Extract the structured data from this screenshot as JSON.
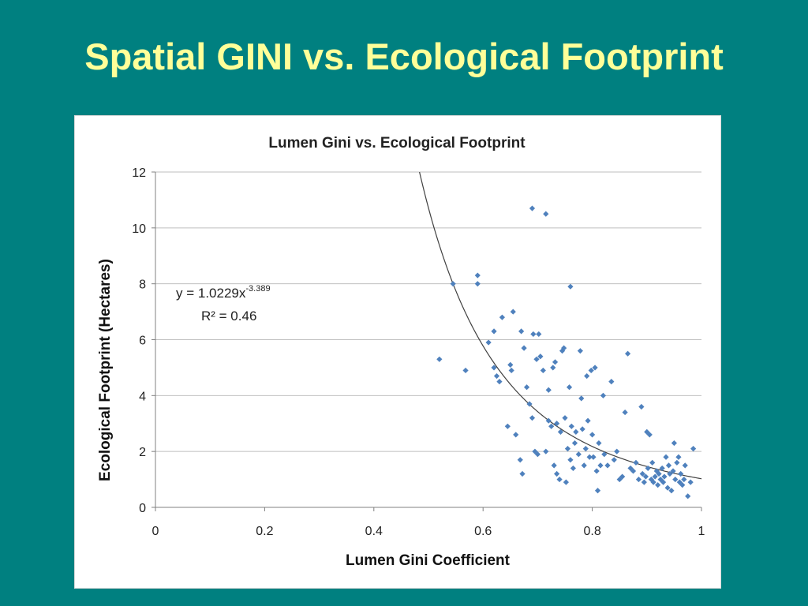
{
  "slide": {
    "title": "Spatial GINI vs. Ecological Footprint",
    "background_color": "#008080",
    "title_color": "#ffff99"
  },
  "chart_data": {
    "type": "scatter",
    "title": "Lumen Gini vs. Ecological Footprint",
    "xlabel": "Lumen Gini Coefficient",
    "ylabel": "Ecological Footprint (Hectares)",
    "xlim": [
      0,
      1
    ],
    "ylim": [
      0,
      12
    ],
    "x_ticks": [
      "0",
      "0.2",
      "0.4",
      "0.6",
      "0.8",
      "1"
    ],
    "y_ticks": [
      "0",
      "2",
      "4",
      "6",
      "8",
      "10",
      "12"
    ],
    "grid": "horizontal",
    "legend": "none",
    "point_color": "#4f81bd",
    "trendline": {
      "type": "power",
      "coefficient": 1.0229,
      "exponent": -3.389,
      "equation_base": "y = 1.0229x",
      "equation_exponent": "-3.389",
      "r_squared_label": "R² = 0.46",
      "color": "#404040"
    },
    "series": [
      {
        "marker": "diamond",
        "points": [
          [
            0.52,
            5.3
          ],
          [
            0.545,
            8.0
          ],
          [
            0.568,
            4.9
          ],
          [
            0.59,
            8.3
          ],
          [
            0.59,
            8.0
          ],
          [
            0.61,
            5.9
          ],
          [
            0.62,
            6.3
          ],
          [
            0.62,
            5.0
          ],
          [
            0.625,
            4.7
          ],
          [
            0.63,
            4.5
          ],
          [
            0.635,
            6.8
          ],
          [
            0.645,
            2.9
          ],
          [
            0.65,
            5.1
          ],
          [
            0.652,
            4.9
          ],
          [
            0.655,
            7.0
          ],
          [
            0.66,
            2.6
          ],
          [
            0.668,
            1.7
          ],
          [
            0.67,
            6.3
          ],
          [
            0.672,
            1.2
          ],
          [
            0.675,
            5.7
          ],
          [
            0.68,
            4.3
          ],
          [
            0.685,
            3.7
          ],
          [
            0.69,
            10.7
          ],
          [
            0.69,
            3.2
          ],
          [
            0.692,
            6.2
          ],
          [
            0.695,
            2.0
          ],
          [
            0.698,
            5.3
          ],
          [
            0.7,
            1.9
          ],
          [
            0.702,
            6.2
          ],
          [
            0.705,
            5.4
          ],
          [
            0.71,
            4.9
          ],
          [
            0.715,
            10.5
          ],
          [
            0.715,
            2.0
          ],
          [
            0.72,
            4.2
          ],
          [
            0.72,
            3.1
          ],
          [
            0.725,
            2.9
          ],
          [
            0.728,
            5.0
          ],
          [
            0.73,
            1.5
          ],
          [
            0.732,
            5.2
          ],
          [
            0.735,
            3.0
          ],
          [
            0.735,
            1.2
          ],
          [
            0.74,
            1.0
          ],
          [
            0.742,
            2.7
          ],
          [
            0.745,
            5.6
          ],
          [
            0.748,
            5.7
          ],
          [
            0.75,
            3.2
          ],
          [
            0.752,
            0.9
          ],
          [
            0.755,
            2.1
          ],
          [
            0.758,
            4.3
          ],
          [
            0.76,
            7.9
          ],
          [
            0.76,
            1.7
          ],
          [
            0.762,
            2.9
          ],
          [
            0.765,
            1.4
          ],
          [
            0.768,
            2.3
          ],
          [
            0.77,
            2.7
          ],
          [
            0.775,
            1.9
          ],
          [
            0.778,
            5.6
          ],
          [
            0.78,
            3.9
          ],
          [
            0.782,
            2.8
          ],
          [
            0.785,
            1.5
          ],
          [
            0.788,
            2.1
          ],
          [
            0.79,
            4.7
          ],
          [
            0.792,
            3.1
          ],
          [
            0.795,
            1.8
          ],
          [
            0.798,
            4.9
          ],
          [
            0.8,
            2.6
          ],
          [
            0.802,
            1.8
          ],
          [
            0.805,
            5.0
          ],
          [
            0.808,
            1.3
          ],
          [
            0.81,
            0.6
          ],
          [
            0.812,
            2.3
          ],
          [
            0.815,
            1.5
          ],
          [
            0.82,
            4.0
          ],
          [
            0.822,
            1.9
          ],
          [
            0.828,
            1.5
          ],
          [
            0.835,
            4.5
          ],
          [
            0.84,
            1.7
          ],
          [
            0.845,
            2.0
          ],
          [
            0.85,
            1.0
          ],
          [
            0.855,
            1.1
          ],
          [
            0.86,
            3.4
          ],
          [
            0.865,
            5.5
          ],
          [
            0.87,
            1.4
          ],
          [
            0.875,
            1.3
          ],
          [
            0.88,
            1.6
          ],
          [
            0.885,
            1.0
          ],
          [
            0.89,
            3.6
          ],
          [
            0.892,
            1.2
          ],
          [
            0.895,
            0.9
          ],
          [
            0.898,
            1.1
          ],
          [
            0.9,
            2.7
          ],
          [
            0.902,
            1.4
          ],
          [
            0.905,
            2.6
          ],
          [
            0.908,
            1.0
          ],
          [
            0.91,
            1.6
          ],
          [
            0.912,
            0.9
          ],
          [
            0.915,
            1.1
          ],
          [
            0.918,
            1.3
          ],
          [
            0.92,
            0.8
          ],
          [
            0.922,
            1.2
          ],
          [
            0.925,
            1.0
          ],
          [
            0.928,
            1.4
          ],
          [
            0.93,
            0.9
          ],
          [
            0.932,
            1.1
          ],
          [
            0.935,
            1.8
          ],
          [
            0.938,
            0.7
          ],
          [
            0.94,
            1.5
          ],
          [
            0.942,
            1.2
          ],
          [
            0.945,
            0.6
          ],
          [
            0.948,
            1.3
          ],
          [
            0.95,
            2.3
          ],
          [
            0.952,
            1.0
          ],
          [
            0.955,
            1.6
          ],
          [
            0.958,
            1.8
          ],
          [
            0.96,
            0.9
          ],
          [
            0.962,
            1.2
          ],
          [
            0.965,
            0.8
          ],
          [
            0.968,
            1.0
          ],
          [
            0.97,
            1.5
          ],
          [
            0.975,
            0.4
          ],
          [
            0.98,
            0.9
          ],
          [
            0.985,
            2.1
          ]
        ]
      }
    ]
  }
}
